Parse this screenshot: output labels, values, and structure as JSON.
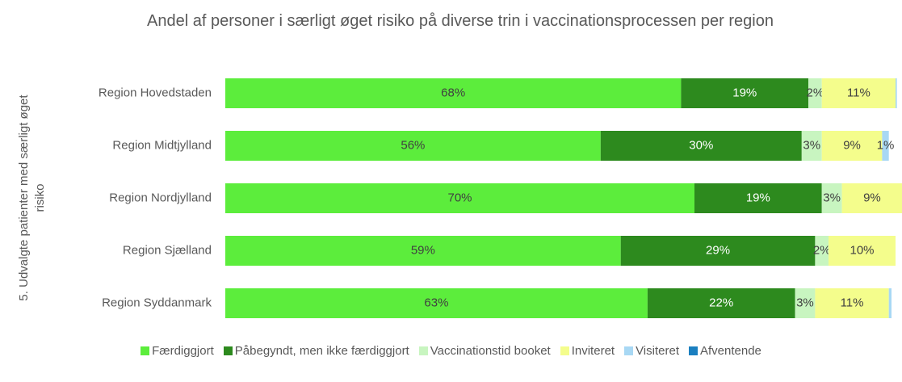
{
  "chart_data": {
    "type": "stacked_barh",
    "title": "Andel af personer i særligt øget risiko på diverse trin i vaccinationsprocessen per region",
    "y_label": "5. Udvalgte patienter med særligt øget risiko",
    "categories": [
      "Region Hovedstaden",
      "Region Midtjylland",
      "Region Nordjylland",
      "Region Sjælland",
      "Region Syddanmark"
    ],
    "xlim": [
      0,
      100
    ],
    "legend": "bottom",
    "series": [
      {
        "name": "Færdiggjort",
        "color": "#5ced3c",
        "label_color": "#404040",
        "values": [
          68,
          56,
          70,
          59,
          63
        ],
        "value_labels": [
          "68%",
          "56%",
          "70%",
          "59%",
          "63%"
        ]
      },
      {
        "name": "Påbegyndt, men ikke færdiggjort",
        "color": "#2d8a1e",
        "label_color": "#ffffff",
        "values": [
          19,
          30,
          19,
          29,
          22
        ],
        "value_labels": [
          "19%",
          "30%",
          "19%",
          "29%",
          "22%"
        ]
      },
      {
        "name": "Vaccinationstid booket",
        "color": "#c8f5c0",
        "label_color": "#404040",
        "values": [
          2,
          3,
          3,
          2,
          3
        ],
        "value_labels": [
          "2%",
          "3%",
          "3%",
          "2%",
          "3%"
        ]
      },
      {
        "name": "Inviteret",
        "color": "#f4fd8c",
        "label_color": "#404040",
        "values": [
          11,
          9,
          9,
          10,
          11
        ],
        "value_labels": [
          "11%",
          "9%",
          "9%",
          "10%",
          "11%"
        ]
      },
      {
        "name": "Visiteret",
        "color": "#a8d8f4",
        "label_color": "#404040",
        "values": [
          0.2,
          1,
          0.3,
          0,
          0.4
        ],
        "value_labels": [
          null,
          "1%",
          null,
          null,
          null
        ]
      },
      {
        "name": "Afventende",
        "color": "#1a7fc0",
        "label_color": "#404040",
        "values": [
          0,
          0,
          0,
          0,
          0
        ],
        "value_labels": [
          null,
          null,
          null,
          null,
          null
        ]
      }
    ]
  }
}
